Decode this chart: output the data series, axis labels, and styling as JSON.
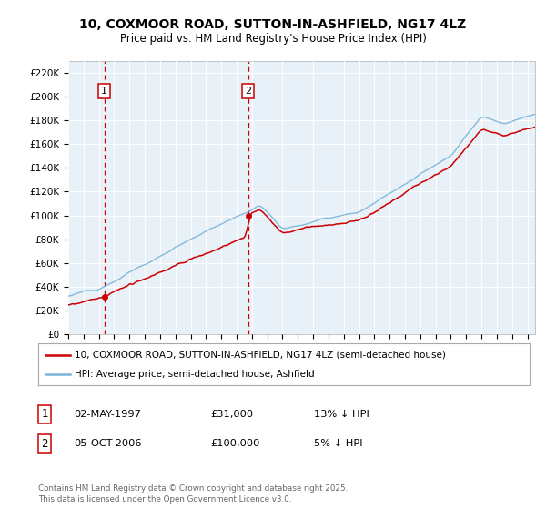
{
  "title": "10, COXMOOR ROAD, SUTTON-IN-ASHFIELD, NG17 4LZ",
  "subtitle": "Price paid vs. HM Land Registry's House Price Index (HPI)",
  "legend_line1": "10, COXMOOR ROAD, SUTTON-IN-ASHFIELD, NG17 4LZ (semi-detached house)",
  "legend_line2": "HPI: Average price, semi-detached house, Ashfield",
  "footer": "Contains HM Land Registry data © Crown copyright and database right 2025.\nThis data is licensed under the Open Government Licence v3.0.",
  "marker1_date": "02-MAY-1997",
  "marker1_price": "£31,000",
  "marker1_hpi": "13% ↓ HPI",
  "marker2_date": "05-OCT-2006",
  "marker2_price": "£100,000",
  "marker2_hpi": "5% ↓ HPI",
  "sale1_year": 1997.35,
  "sale1_price": 31000,
  "sale2_year": 2006.75,
  "sale2_price": 100000,
  "xmin": 1995,
  "xmax": 2025.5,
  "ymin": 0,
  "ymax": 230000,
  "yticks": [
    0,
    20000,
    40000,
    60000,
    80000,
    100000,
    120000,
    140000,
    160000,
    180000,
    200000,
    220000
  ],
  "ytick_labels": [
    "£0",
    "£20K",
    "£40K",
    "£60K",
    "£80K",
    "£100K",
    "£120K",
    "£140K",
    "£160K",
    "£180K",
    "£200K",
    "£220K"
  ],
  "hpi_color": "#7ab4d8",
  "price_color": "#cc0000",
  "dashed_color": "#cc0000",
  "plot_bg": "#e8f0f8",
  "grid_color": "#ffffff"
}
